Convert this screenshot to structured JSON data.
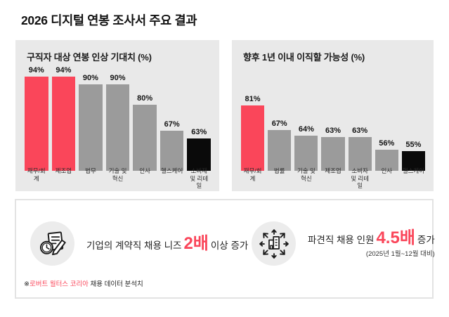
{
  "title": "2026 디지털 연봉 조사서 주요 결과",
  "theme": {
    "accent": "#FA465A",
    "bar_gray": "#9B9B9B",
    "bar_black": "#0A0A0A",
    "panel_bg": "#E9E9E9",
    "icon_circle_bg": "#ECECEC",
    "border": "#E3E3E3"
  },
  "chart_data": [
    {
      "type": "bar",
      "title": "구직자 대상 연봉 인상 기대치 (%)",
      "categories": [
        "재무/회계",
        "제조업",
        "법무",
        "기술 및 혁신",
        "인사",
        "헬스케어",
        "소비재 및 리테일"
      ],
      "values": [
        94,
        94,
        90,
        90,
        80,
        67,
        63
      ],
      "unit": "%",
      "bar_colors": [
        "#FA465A",
        "#FA465A",
        "#9B9B9B",
        "#9B9B9B",
        "#9B9B9B",
        "#9B9B9B",
        "#0A0A0A"
      ],
      "ylim": [
        47,
        96
      ],
      "grid": false,
      "legend": null,
      "value_labels_shown": true
    },
    {
      "type": "bar",
      "title": "향후 1년 이내 이직할 가능성 (%)",
      "categories": [
        "재무/회계",
        "법률",
        "기술 및 혁신",
        "제조업",
        "소비자 및 리테일",
        "인사",
        "헬스케어"
      ],
      "values": [
        81,
        67,
        64,
        63,
        63,
        56,
        55
      ],
      "unit": "%",
      "bar_colors": [
        "#FA465A",
        "#9B9B9B",
        "#9B9B9B",
        "#9B9B9B",
        "#9B9B9B",
        "#9B9B9B",
        "#0A0A0A"
      ],
      "ylim": [
        44,
        100
      ],
      "grid": false,
      "legend": null,
      "value_labels_shown": true
    }
  ],
  "callouts": [
    {
      "icon": "clock-document-pencil-icon",
      "text_before": "기업의 계약직 채용 니즈",
      "highlight": "2배",
      "text_after": "이상 증가",
      "note": ""
    },
    {
      "icon": "building-expand-arrows-icon",
      "text_before": "파견직 채용 인원",
      "highlight": "4.5배",
      "text_after": "증가",
      "note": "(2025년 1월~12월 대비)"
    }
  ],
  "footnote": {
    "marker": "※",
    "source": "로버트 월터스 코리아",
    "rest": " 채용 데이터 분석치"
  }
}
